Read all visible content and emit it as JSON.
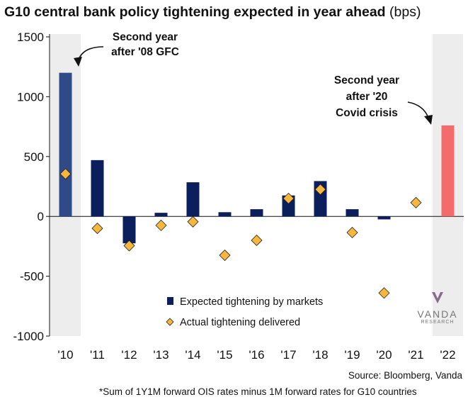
{
  "title": {
    "main": "G10 central bank policy tightening expected in year ahead",
    "unit": "(bps)"
  },
  "source": "Source: Bloomberg, Vanda",
  "footnote": "*Sum of 1Y1M forward OIS rates minus 1M forward rates for G10 countries",
  "logo": {
    "word": "VANDA",
    "sub": "RESEARCH"
  },
  "colors": {
    "expected": "#0b1f5c",
    "expected_2010": "#2f4a86",
    "expected_2022": "#f36b6b",
    "actual": "#f6b73c",
    "shade": "#ededed"
  },
  "chart_data": {
    "type": "bar",
    "categories": [
      "'10",
      "'11",
      "'12",
      "'13",
      "'14",
      "'15",
      "'16",
      "'17",
      "'18",
      "'19",
      "'20",
      "'21",
      "'22"
    ],
    "series": [
      {
        "name": "Expected tightening by markets",
        "values": [
          1200,
          470,
          -225,
          30,
          285,
          35,
          60,
          175,
          295,
          60,
          -25,
          0,
          760
        ]
      },
      {
        "name": "Actual tightening delivered",
        "values": [
          355,
          -100,
          -245,
          -75,
          -45,
          -325,
          -200,
          150,
          225,
          -135,
          -640,
          115,
          null
        ]
      }
    ],
    "ylim": [
      -1000,
      1500
    ],
    "yticks": [
      1500,
      1000,
      500,
      0,
      -500,
      -1000
    ],
    "ytick_labels": [
      "1500",
      "1000",
      "500",
      "0",
      "-500",
      "-1000"
    ],
    "highlighted_categories": [
      "'10",
      "'22"
    ],
    "legend_position": "bottom-right",
    "annotations": [
      {
        "lines": [
          "Second year",
          "after '08 GFC"
        ],
        "target": "'10"
      },
      {
        "lines": [
          "Second year",
          "after '20",
          "Covid crisis"
        ],
        "target": "'22"
      }
    ]
  }
}
